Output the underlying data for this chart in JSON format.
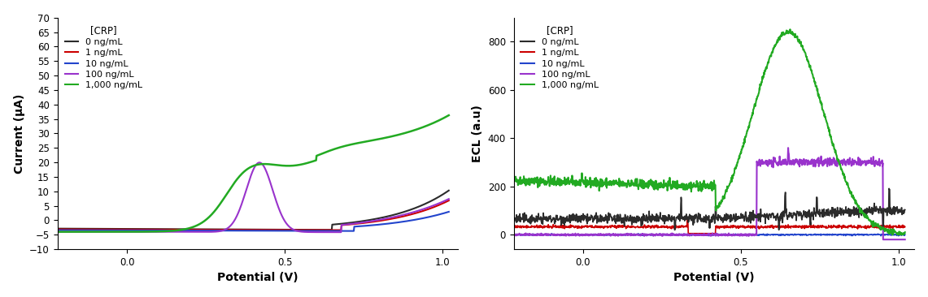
{
  "left_chart": {
    "xlabel": "Potential (V)",
    "ylabel": "Current (μA)",
    "xlim": [
      -0.22,
      1.05
    ],
    "ylim": [
      -10,
      70
    ],
    "yticks": [
      -10,
      -5,
      0,
      5,
      10,
      15,
      20,
      25,
      30,
      35,
      40,
      45,
      50,
      55,
      60,
      65,
      70
    ],
    "xticks": [
      0.0,
      0.5,
      1.0
    ],
    "legend_title": "[CRP]",
    "legend_labels": [
      "0 ng/mL",
      "1 ng/mL",
      "10 ng/mL",
      "100 ng/mL",
      "1,000 ng/mL"
    ],
    "colors": [
      "#2b2b2b",
      "#cc0000",
      "#2244cc",
      "#9933cc",
      "#22aa22"
    ]
  },
  "right_chart": {
    "xlabel": "Potential (V)",
    "ylabel": "ECL (a.u)",
    "xlim": [
      -0.22,
      1.05
    ],
    "ylim": [
      -60,
      900
    ],
    "yticks": [
      0,
      200,
      400,
      600,
      800
    ],
    "xticks": [
      0.0,
      0.5,
      1.0
    ],
    "legend_title": "[CRP]",
    "legend_labels": [
      "0 ng/mL",
      "1 ng/mL",
      "10 ng/mL",
      "100 ng/mL",
      "1,000 ng/mL"
    ],
    "colors": [
      "#2b2b2b",
      "#cc0000",
      "#2244cc",
      "#9933cc",
      "#22aa22"
    ]
  }
}
